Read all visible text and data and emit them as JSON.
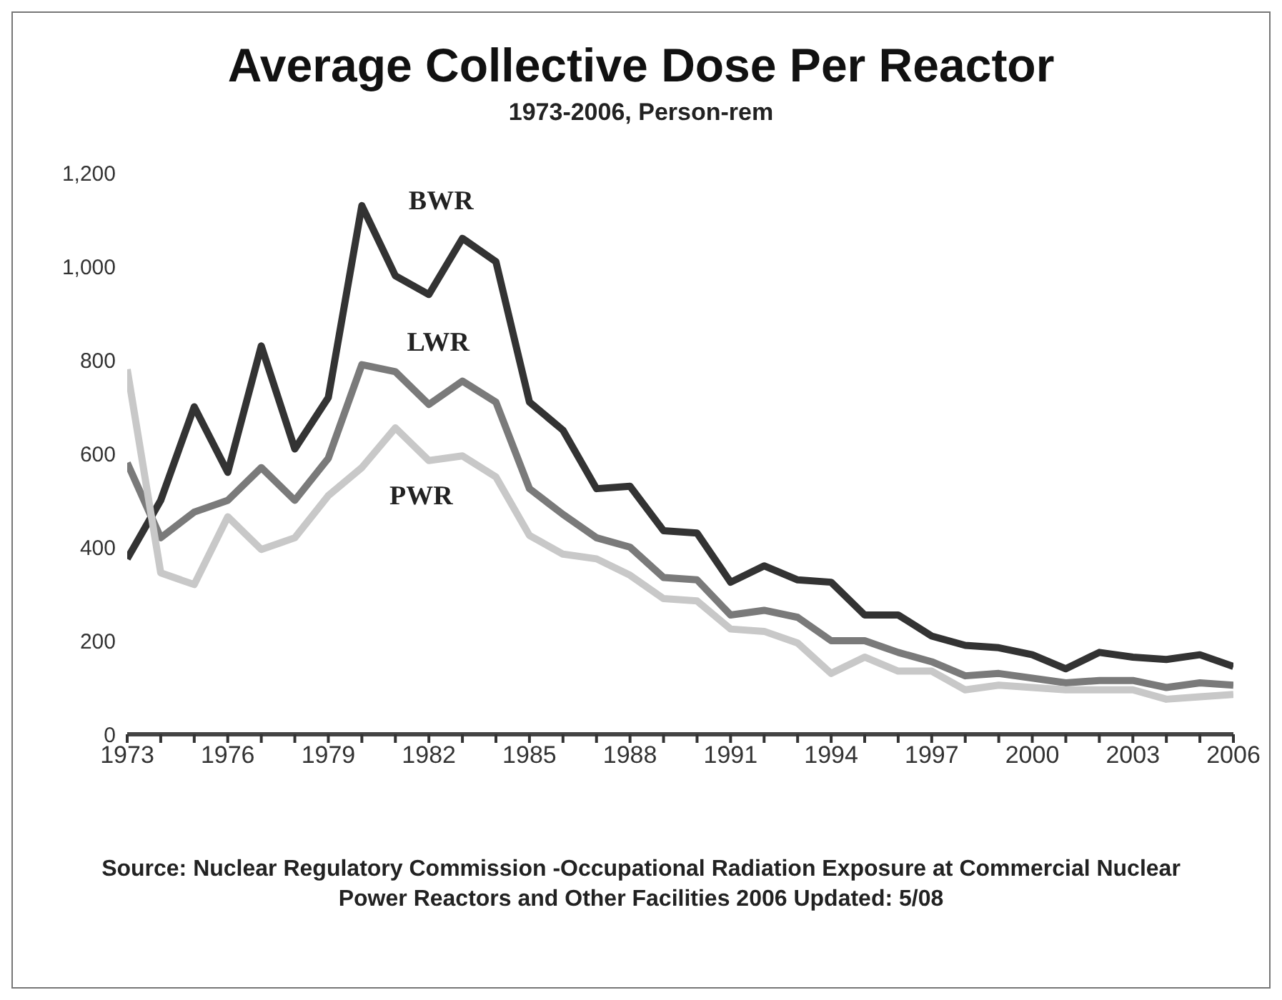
{
  "chart_data": {
    "type": "line",
    "title": "Average Collective Dose Per Reactor",
    "subtitle": "1973-2006, Person-rem",
    "x": [
      1973,
      1974,
      1975,
      1976,
      1977,
      1978,
      1979,
      1980,
      1981,
      1982,
      1983,
      1984,
      1985,
      1986,
      1987,
      1988,
      1989,
      1990,
      1991,
      1992,
      1993,
      1994,
      1995,
      1996,
      1997,
      1998,
      1999,
      2000,
      2001,
      2002,
      2003,
      2004,
      2005,
      2006
    ],
    "series": [
      {
        "name": "BWR",
        "color": "#333333",
        "values": [
          375,
          500,
          700,
          560,
          830,
          610,
          720,
          1130,
          980,
          940,
          1060,
          1010,
          710,
          650,
          525,
          530,
          435,
          430,
          325,
          360,
          330,
          325,
          255,
          255,
          210,
          190,
          185,
          170,
          140,
          175,
          165,
          160,
          170,
          145
        ]
      },
      {
        "name": "LWR",
        "color": "#7a7a7a",
        "values": [
          580,
          420,
          475,
          500,
          570,
          500,
          590,
          790,
          775,
          705,
          755,
          710,
          525,
          470,
          420,
          400,
          335,
          330,
          255,
          265,
          250,
          200,
          200,
          175,
          155,
          125,
          130,
          120,
          110,
          115,
          115,
          100,
          110,
          105
        ]
      },
      {
        "name": "PWR",
        "color": "#c8c8c8",
        "values": [
          780,
          345,
          320,
          465,
          395,
          420,
          510,
          570,
          655,
          585,
          595,
          550,
          425,
          385,
          375,
          340,
          290,
          285,
          225,
          220,
          195,
          130,
          165,
          135,
          135,
          95,
          105,
          100,
          95,
          95,
          95,
          75,
          80,
          85
        ]
      }
    ],
    "xlim": [
      1973,
      2006
    ],
    "xticks": [
      1973,
      {
        "value": 1974,
        "label": null
      },
      {
        "value": 1975,
        "label": null
      },
      1976,
      {
        "value": 1977,
        "label": null
      },
      {
        "value": 1978,
        "label": null
      },
      1979,
      {
        "value": 1980,
        "label": null
      },
      {
        "value": 1981,
        "label": null
      },
      1982,
      {
        "value": 1983,
        "label": null
      },
      {
        "value": 1984,
        "label": null
      },
      1985,
      {
        "value": 1986,
        "label": null
      },
      {
        "value": 1987,
        "label": null
      },
      1988,
      {
        "value": 1989,
        "label": null
      },
      {
        "value": 1990,
        "label": null
      },
      1991,
      {
        "value": 1992,
        "label": null
      },
      {
        "value": 1993,
        "label": null
      },
      1994,
      {
        "value": 1995,
        "label": null
      },
      {
        "value": 1996,
        "label": null
      },
      1997,
      {
        "value": 1998,
        "label": null
      },
      {
        "value": 1999,
        "label": null
      },
      2000,
      {
        "value": 2001,
        "label": null
      },
      {
        "value": 2002,
        "label": null
      },
      2003,
      {
        "value": 2004,
        "label": null
      },
      {
        "value": 2005,
        "label": null
      },
      2006
    ],
    "ylim": [
      0,
      1200
    ],
    "yticks": [
      0,
      200,
      400,
      600,
      800,
      {
        "value": 1000,
        "label": "1,000"
      },
      {
        "value": 1200,
        "label": "1,200"
      }
    ],
    "grid": false,
    "legend": false,
    "marker": "none",
    "line_style": "solid",
    "annotations": [
      "Source: Nuclear Regulatory Commission -Occupational Radiation Exposure at Commercial Nuclear Power Reactors and Other Facilities 2006 Updated: 5/08"
    ]
  }
}
